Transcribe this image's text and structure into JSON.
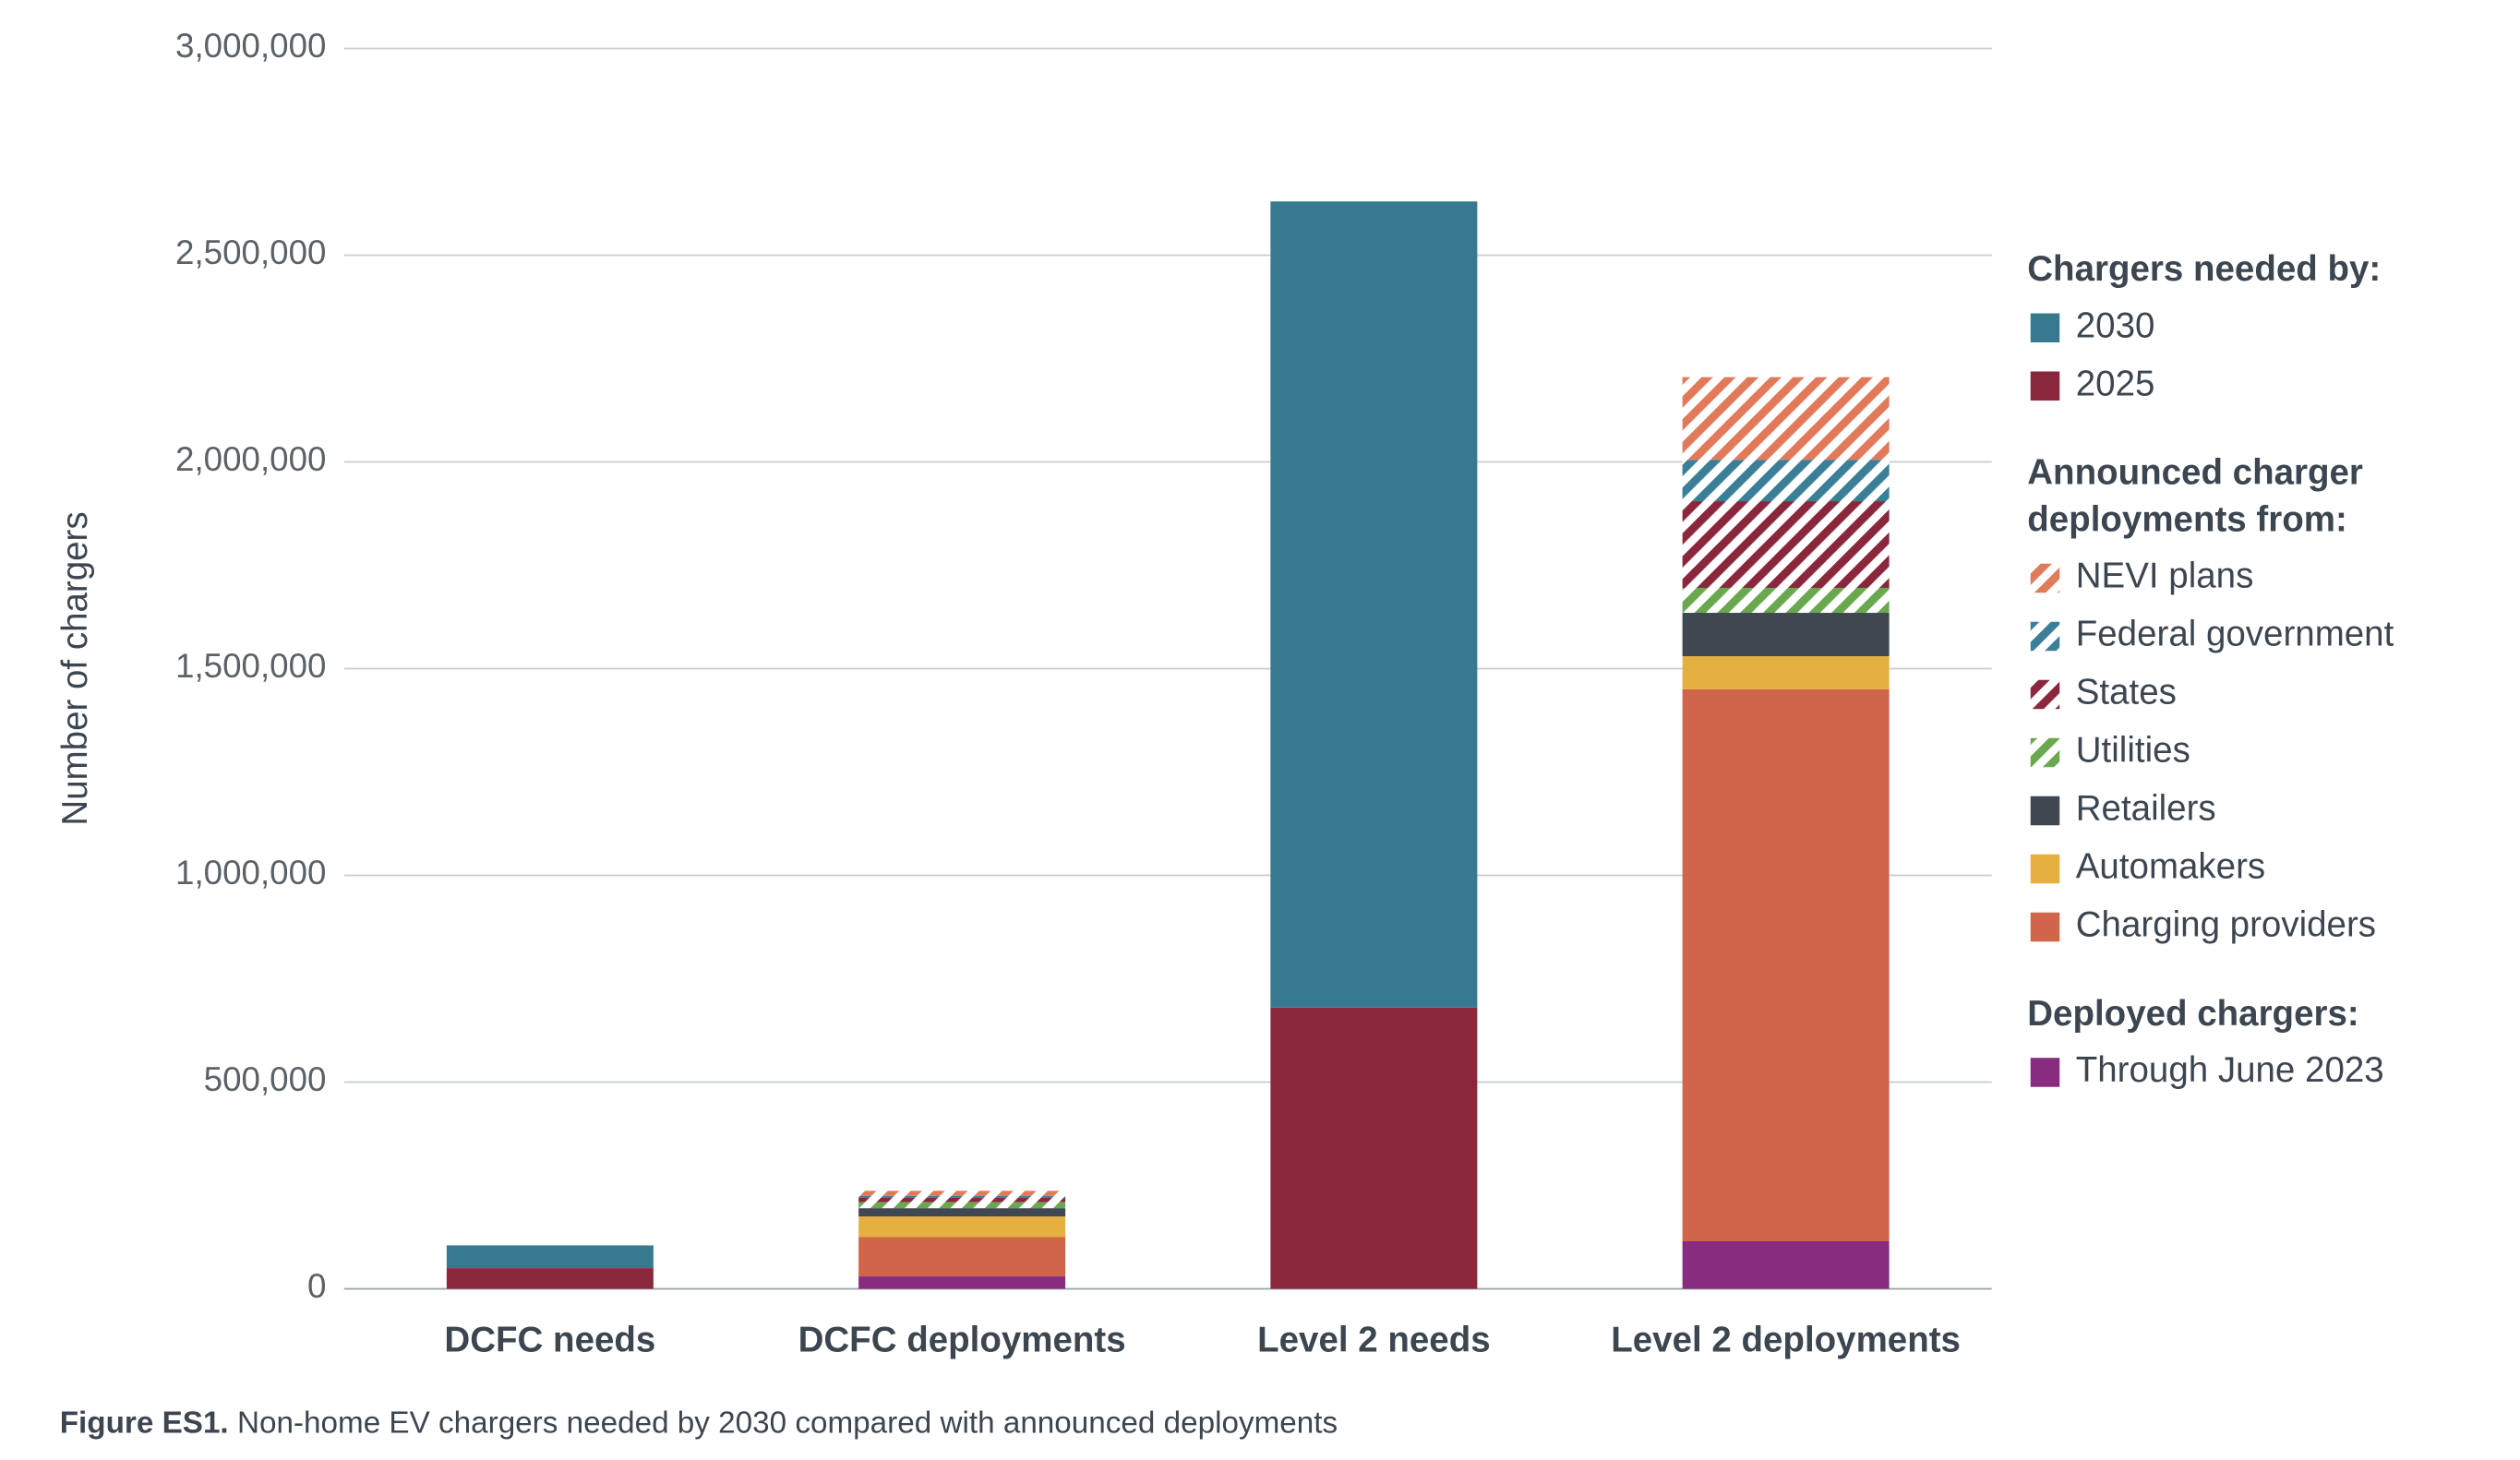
{
  "chart_data": {
    "type": "stacked-bar",
    "y_label": "Number of chargers",
    "caption_label": "Figure ES1.",
    "caption": "Non-home EV chargers needed by 2030 compared with announced deployments",
    "legend_sections": [
      [
        "Chargers needed by:"
      ],
      [
        "Announced charger",
        "deployments from:"
      ],
      [
        "Deployed chargers:"
      ]
    ],
    "categories": [
      "DCFC needs",
      "DCFC deployments",
      "Level 2 needs",
      "Level 2 deployments"
    ],
    "series": [
      {
        "name": "2030",
        "color": "#377a90",
        "values": [
          55000,
          null,
          1950000,
          null
        ]
      },
      {
        "name": "2025",
        "color": "#8b273d",
        "values": [
          50000,
          null,
          680000,
          null
        ]
      },
      {
        "name": "NEVI plans",
        "color": "#e07a5a",
        "hatched": true,
        "values": [
          null,
          12000,
          null,
          200000
        ]
      },
      {
        "name": "Federal government",
        "color": "#3a7f97",
        "hatched": true,
        "values": [
          null,
          5000,
          null,
          100000
        ]
      },
      {
        "name": "States",
        "color": "#8b273d",
        "hatched": true,
        "values": [
          null,
          10000,
          null,
          210000
        ]
      },
      {
        "name": "Utilities",
        "color": "#6aa84f",
        "hatched": true,
        "values": [
          null,
          15000,
          null,
          60000
        ]
      },
      {
        "name": "Retailers",
        "color": "#3f4850",
        "values": [
          null,
          20000,
          null,
          105000
        ]
      },
      {
        "name": "Automakers",
        "color": "#e6b040",
        "values": [
          null,
          50000,
          null,
          80000
        ]
      },
      {
        "name": "Charging providers",
        "color": "#d0654a",
        "values": [
          null,
          95000,
          null,
          1335000
        ]
      },
      {
        "name": "Through June 2023",
        "color": "#872c7f",
        "values": [
          null,
          30000,
          null,
          115000
        ]
      }
    ],
    "ylim": [
      0,
      3000000
    ],
    "yticks": [
      0,
      {
        "value": 500000,
        "label": "500,000"
      },
      {
        "value": 1000000,
        "label": "1,000,000"
      },
      {
        "value": 1500000,
        "label": "1,500,000"
      },
      {
        "value": 2000000,
        "label": "2,000,000"
      },
      {
        "value": 2500000,
        "label": "2,500,000"
      },
      {
        "value": 3000000,
        "label": "3,000,000"
      }
    ],
    "grid": true
  }
}
